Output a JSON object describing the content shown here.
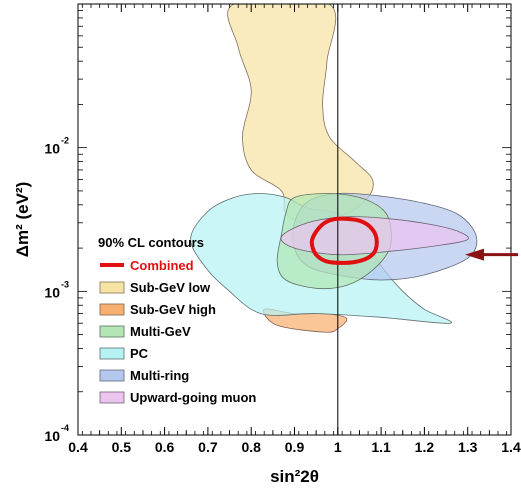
{
  "chart_data": {
    "type": "area",
    "xlabel": "sin²2θ",
    "ylabel": "Δm² (eV²)",
    "xlim": [
      0.4,
      1.4
    ],
    "ylim": [
      0.0001,
      0.1
    ],
    "y_scale": "log",
    "x_ticks": [
      "0.4",
      "0.5",
      "0.6",
      "0.7",
      "0.8",
      "0.9",
      "1",
      "1.1",
      "1.2",
      "1.3",
      "1.4"
    ],
    "y_ticks": [
      {
        "base": "10",
        "exp": "-2"
      },
      {
        "base": "10",
        "exp": "-3"
      },
      {
        "base": "10",
        "exp": "-4"
      }
    ],
    "legend_title": "90% CL contours",
    "legend_position": "left",
    "reference_line_x": 1.0,
    "arrow_y": 0.0018,
    "series": [
      {
        "name": "Sub-GeV low",
        "color": "#f7e3a3",
        "stroke": "#807060",
        "contour": [
          [
            0.76,
            0.1
          ],
          [
            0.98,
            0.1
          ],
          [
            0.975,
            0.04
          ],
          [
            0.965,
            0.02
          ],
          [
            0.98,
            0.012
          ],
          [
            1.04,
            0.008
          ],
          [
            1.08,
            0.006
          ],
          [
            1.07,
            0.0045
          ],
          [
            1.02,
            0.0035
          ],
          [
            0.93,
            0.003
          ],
          [
            0.88,
            0.0035
          ],
          [
            0.87,
            0.005
          ],
          [
            0.8,
            0.007
          ],
          [
            0.78,
            0.012
          ],
          [
            0.8,
            0.025
          ],
          [
            0.77,
            0.05
          ]
        ]
      },
      {
        "name": "Sub-GeV high",
        "color": "#f8b070",
        "stroke": "#806050",
        "contour": [
          [
            0.83,
            0.00075
          ],
          [
            0.86,
            0.00058
          ],
          [
            0.97,
            0.00052
          ],
          [
            1.0,
            0.00055
          ],
          [
            1.02,
            0.00065
          ],
          [
            0.97,
            0.0007
          ],
          [
            0.9,
            0.0007
          ]
        ]
      },
      {
        "name": "PC",
        "color": "#b6f2f4",
        "stroke": "#607070",
        "contour": [
          [
            0.66,
            0.0023
          ],
          [
            0.7,
            0.0036
          ],
          [
            0.76,
            0.0045
          ],
          [
            0.82,
            0.0048
          ],
          [
            0.88,
            0.0045
          ],
          [
            0.93,
            0.0038
          ],
          [
            1.0,
            0.0035
          ],
          [
            1.04,
            0.0028
          ],
          [
            1.07,
            0.0021
          ],
          [
            1.1,
            0.0015
          ],
          [
            1.15,
            0.001
          ],
          [
            1.2,
            0.00075
          ],
          [
            1.26,
            0.0006
          ],
          [
            1.1,
            0.00066
          ],
          [
            0.95,
            0.0007
          ],
          [
            0.85,
            0.00068
          ],
          [
            0.8,
            0.00075
          ],
          [
            0.75,
            0.001
          ],
          [
            0.7,
            0.0014
          ]
        ]
      },
      {
        "name": "Multi-ring",
        "color": "#b4c8ee",
        "stroke": "#606878",
        "contour": [
          [
            0.93,
            0.0042
          ],
          [
            1.0,
            0.0048
          ],
          [
            1.1,
            0.0046
          ],
          [
            1.2,
            0.0041
          ],
          [
            1.28,
            0.0034
          ],
          [
            1.32,
            0.0024
          ],
          [
            1.3,
            0.0017
          ],
          [
            1.2,
            0.0013
          ],
          [
            1.1,
            0.0012
          ],
          [
            1.0,
            0.0013
          ],
          [
            0.93,
            0.0015
          ],
          [
            0.9,
            0.002
          ],
          [
            0.9,
            0.003
          ]
        ]
      },
      {
        "name": "Multi-GeV",
        "color": "#b2e6b4",
        "stroke": "#607060",
        "contour": [
          [
            0.9,
            0.0045
          ],
          [
            0.98,
            0.0048
          ],
          [
            1.05,
            0.0045
          ],
          [
            1.1,
            0.0038
          ],
          [
            1.12,
            0.003
          ],
          [
            1.12,
            0.002
          ],
          [
            1.08,
            0.0014
          ],
          [
            1.02,
            0.0011
          ],
          [
            0.95,
            0.00105
          ],
          [
            0.88,
            0.0012
          ],
          [
            0.86,
            0.0016
          ],
          [
            0.87,
            0.0025
          ],
          [
            0.88,
            0.0035
          ]
        ]
      },
      {
        "name": "Upward-going muon",
        "color": "#ecc4f0",
        "stroke": "#706070",
        "contour": [
          [
            0.87,
            0.0024
          ],
          [
            0.93,
            0.003
          ],
          [
            1.02,
            0.0033
          ],
          [
            1.12,
            0.0032
          ],
          [
            1.22,
            0.0029
          ],
          [
            1.28,
            0.0026
          ],
          [
            1.3,
            0.0023
          ],
          [
            1.24,
            0.0021
          ],
          [
            1.12,
            0.0019
          ],
          [
            1.0,
            0.0018
          ],
          [
            0.9,
            0.002
          ]
        ]
      },
      {
        "name": "Combined",
        "color": "#e01010",
        "stroke": "#e01010",
        "contour": [
          [
            1.0,
            0.0032
          ],
          [
            1.05,
            0.0031
          ],
          [
            1.08,
            0.0027
          ],
          [
            1.09,
            0.0022
          ],
          [
            1.08,
            0.0018
          ],
          [
            1.04,
            0.0016
          ],
          [
            0.98,
            0.0016
          ],
          [
            0.95,
            0.0018
          ],
          [
            0.94,
            0.0022
          ],
          [
            0.95,
            0.0026
          ],
          [
            0.97,
            0.003
          ]
        ]
      }
    ]
  },
  "legend_order": [
    6,
    0,
    1,
    4,
    2,
    3,
    5
  ]
}
